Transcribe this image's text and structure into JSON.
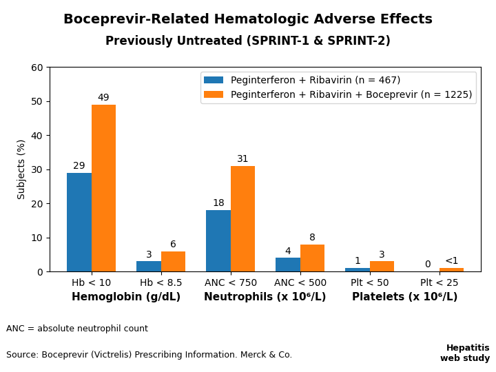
{
  "chart_data": {
    "type": "bar",
    "title": "Boceprevir-Related Hematologic Adverse Effects",
    "subtitle": "Previously Untreated (SPRINT-1 & SPRINT-2)",
    "categories": [
      "Hb < 10",
      "Hb < 8.5",
      "ANC < 750",
      "ANC < 500",
      "Plt < 50",
      "Plt < 25"
    ],
    "group_labels": [
      "Hemoglobin (g/dL)",
      "Neutrophils (x 10⁶/L)",
      "Platelets (x 10⁶/L)"
    ],
    "series": [
      {
        "name": "Peginterferon + Ribavirin (n = 467)",
        "values": [
          29,
          3,
          18,
          4,
          1,
          0
        ]
      },
      {
        "name": "Peginterferon + Ribavirin + Boceprevir (n = 1225)",
        "values": [
          49,
          6,
          31,
          8,
          3,
          1
        ],
        "value_labels": [
          "49",
          "6",
          "31",
          "8",
          "3",
          "<1"
        ]
      }
    ],
    "ylabel": "Subjects (%)",
    "ylim": [
      0,
      60
    ],
    "yticks": [
      0,
      10,
      20,
      30,
      40,
      50,
      60
    ],
    "grid": false,
    "legend": "upper right",
    "data_labels": true,
    "annotations": [
      "ANC = absolute neutrophil count",
      "Source: Boceprevir (Victrelis) Prescribing Information. Merck & Co.",
      "Hepatitis\nweb study"
    ]
  }
}
